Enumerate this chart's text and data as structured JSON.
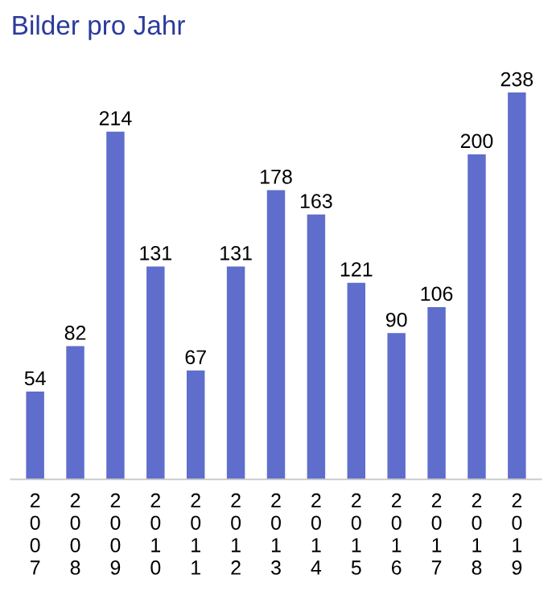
{
  "chart_data": {
    "type": "bar",
    "title": "Bilder pro Jahr",
    "categories": [
      "2007",
      "2008",
      "2009",
      "2010",
      "2011",
      "2012",
      "2013",
      "2014",
      "2015",
      "2016",
      "2017",
      "2018",
      "2019"
    ],
    "values": [
      54,
      82,
      214,
      131,
      67,
      131,
      178,
      163,
      121,
      90,
      106,
      200,
      238
    ],
    "color": "#5f6dcc",
    "data_labels": true,
    "grid": false,
    "legend": false
  }
}
